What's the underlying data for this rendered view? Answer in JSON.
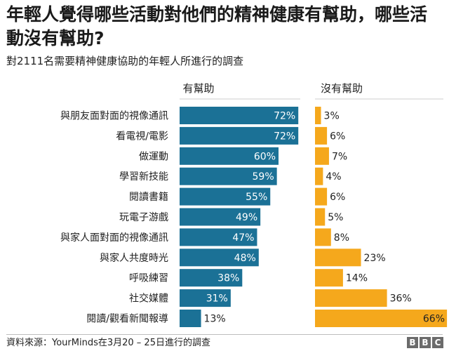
{
  "title": "年輕人覺得哪些活動對他們的精神健康有幫助，哪些活動沒有幫助?",
  "subtitle": "對2111名需要精神健康協助的年輕人所進行的調查",
  "source": "資料來源：YourMinds在3月20 – 25日進行的調查",
  "logo": [
    "B",
    "B",
    "C"
  ],
  "colors": {
    "helpful": "#1b7196",
    "not_helpful": "#f5a81c"
  },
  "chart_data": {
    "type": "bar",
    "title": "年輕人覺得哪些活動對他們的精神健康有幫助，哪些活動沒有幫助?",
    "orientation": "horizontal",
    "value_unit": "%",
    "categories": [
      "與朋友面對面的視像通訊",
      "看電視/電影",
      "做運動",
      "學習新技能",
      "閱讀書籍",
      "玩電子游戲",
      "與家人面對面的視像通訊",
      "與家人共度時光",
      "呼吸練習",
      "社交媒體",
      "閱讀/觀看新聞報導"
    ],
    "series": [
      {
        "name": "有幫助",
        "values": [
          72,
          72,
          60,
          59,
          55,
          49,
          47,
          48,
          38,
          31,
          13
        ]
      },
      {
        "name": "沒有幫助",
        "values": [
          3,
          6,
          7,
          4,
          6,
          5,
          8,
          23,
          14,
          36,
          66
        ]
      }
    ],
    "xlim": [
      0,
      100
    ],
    "legend": "top"
  }
}
